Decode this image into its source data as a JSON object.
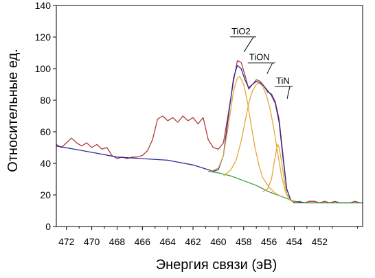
{
  "chart_data": {
    "type": "line",
    "title": "",
    "xlabel": "Энергия связи (эВ)",
    "ylabel": "Относительные ед.",
    "x_reversed": true,
    "xlim": [
      472.8,
      448.6
    ],
    "ylim": [
      0,
      140
    ],
    "x_ticks": [
      "472",
      "470",
      "468",
      "466",
      "464",
      "462",
      "460",
      "458",
      "456",
      "454",
      "452"
    ],
    "y_ticks": [
      "0",
      "20",
      "40",
      "60",
      "80",
      "100",
      "120",
      "140"
    ],
    "grid": false,
    "legend": "none",
    "annotations": [
      {
        "text": "TiO2",
        "x": 458.2,
        "y": 114
      },
      {
        "text": "TiON",
        "x": 456.7,
        "y": 101
      },
      {
        "text": "TiN",
        "x": 455.0,
        "y": 87
      }
    ],
    "series": [
      {
        "color": "#b03a3a",
        "x": [
          472.8,
          472.4,
          472.0,
          471.6,
          471.2,
          470.8,
          470.4,
          470.0,
          469.6,
          469.2,
          468.8,
          468.4,
          468.0,
          467.6,
          467.2,
          466.8,
          466.4,
          466.0,
          465.6,
          465.2,
          464.8,
          464.4,
          464.0,
          463.6,
          463.2,
          462.8,
          462.4,
          462.0,
          461.6,
          461.2,
          460.8,
          460.4,
          460.0,
          459.6,
          459.2,
          458.8,
          458.5,
          458.2,
          457.9,
          457.6,
          457.3,
          457.0,
          456.7,
          456.4,
          456.1,
          455.8,
          455.5,
          455.2,
          454.9,
          454.6,
          454.3,
          454.0,
          453.6,
          453.2,
          452.8,
          452.4,
          452.0,
          451.6,
          451.2,
          450.8,
          450.4,
          450.0,
          449.6,
          449.2,
          448.8,
          448.6
        ],
        "y": [
          52,
          50,
          53,
          56,
          53,
          51,
          53,
          50,
          52,
          49,
          50,
          45,
          43,
          44,
          43,
          44,
          44,
          45,
          48,
          55,
          68,
          70,
          67,
          69,
          66,
          70,
          67,
          69,
          65,
          69,
          55,
          50,
          49,
          53,
          72,
          92,
          105,
          104,
          96,
          87,
          90,
          93,
          92,
          89,
          85,
          84,
          79,
          68,
          46,
          24,
          17,
          15,
          16,
          15,
          16,
          16,
          15,
          16,
          15,
          16,
          15,
          15,
          15,
          16,
          15,
          15
        ]
      },
      {
        "color": "#2a2a9a",
        "x": [
          472.8,
          470.0,
          468.0,
          466.0,
          464.0,
          462.0,
          460.8,
          460.4,
          460.0,
          459.6,
          459.2,
          458.8,
          458.5,
          458.2,
          457.9,
          457.6,
          457.3,
          457.0,
          456.7,
          456.4,
          456.1,
          455.8,
          455.5,
          455.2,
          454.9,
          454.6,
          454.3,
          454.0,
          453.6,
          453.2,
          452.8,
          452.0,
          451.0,
          450.0,
          449.0,
          448.6
        ],
        "y": [
          51,
          47,
          44,
          43,
          42,
          39,
          36,
          35,
          36,
          45,
          70,
          94,
          102,
          100,
          93,
          88,
          90,
          92,
          91,
          89,
          86,
          83,
          78,
          66,
          44,
          24,
          17,
          15,
          15,
          15,
          15,
          15,
          15,
          15,
          15,
          15
        ]
      },
      {
        "color": "#3a9a3a",
        "x": [
          460.8,
          460.0,
          459.0,
          458.0,
          457.0,
          456.0,
          455.0,
          454.0,
          453.0,
          452.0,
          451.0,
          450.0,
          449.0,
          448.6
        ],
        "y": [
          35,
          34,
          32,
          29,
          26,
          22,
          19,
          16,
          15,
          15,
          15,
          15,
          15,
          15
        ]
      },
      {
        "color": "#e0a838",
        "x": [
          460.6,
          460.0,
          459.6,
          459.2,
          458.8,
          458.5,
          458.3,
          458.0,
          457.7,
          457.4,
          457.1,
          456.8,
          456.5,
          456.0,
          455.5,
          455.0
        ],
        "y": [
          35,
          37,
          45,
          64,
          86,
          94,
          95,
          90,
          79,
          64,
          50,
          39,
          31,
          25,
          21,
          19
        ]
      },
      {
        "color": "#e0a838",
        "x": [
          459.6,
          459.0,
          458.6,
          458.2,
          457.9,
          457.6,
          457.3,
          457.0,
          456.8,
          456.5,
          456.2,
          455.9,
          455.6,
          455.3,
          455.0,
          454.7,
          454.4,
          454.1,
          453.8
        ],
        "y": [
          32,
          36,
          42,
          54,
          66,
          78,
          86,
          90,
          91,
          89,
          83,
          74,
          61,
          46,
          32,
          22,
          17,
          16,
          15
        ]
      },
      {
        "color": "#e0a838",
        "x": [
          456.5,
          456.1,
          455.8,
          455.6,
          455.4,
          455.3,
          455.2,
          455.0,
          454.8,
          454.6,
          454.4,
          454.2
        ],
        "y": [
          22,
          24,
          30,
          40,
          49,
          52,
          50,
          41,
          30,
          21,
          17,
          16
        ]
      }
    ]
  }
}
